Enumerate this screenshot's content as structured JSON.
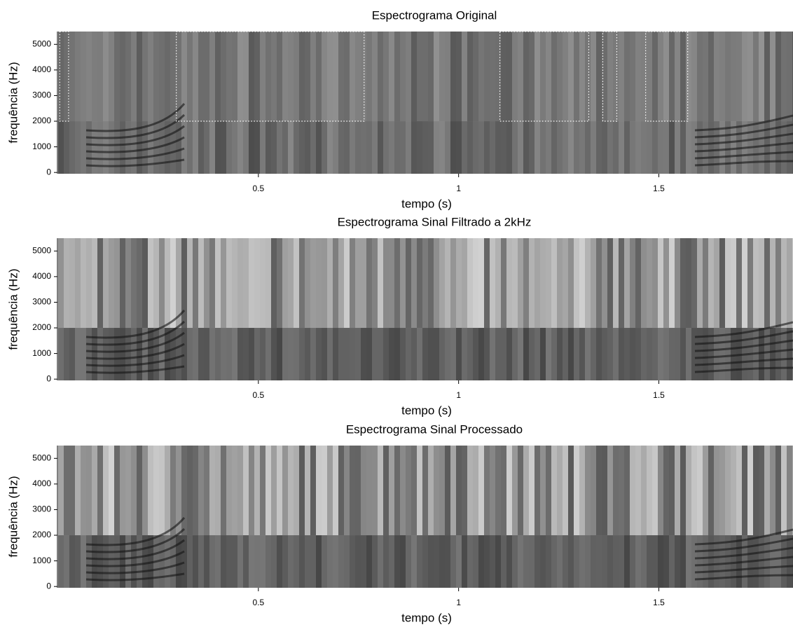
{
  "chart_data": [
    {
      "type": "spectrogram",
      "title": "Espectrograma Original",
      "xlabel": "tempo (s)",
      "ylabel": "frequência (Hz)",
      "xlim": [
        0,
        1.835
      ],
      "ylim": [
        -50,
        5500
      ],
      "xticks": [
        0.5,
        1,
        1.5
      ],
      "yticks": [
        0,
        1000,
        2000,
        3000,
        4000,
        5000
      ],
      "regions": [
        {
          "x": [
            0.004,
            0.026
          ],
          "y": [
            2000,
            5500
          ]
        },
        {
          "x": [
            0.295,
            0.764
          ],
          "y": [
            2000,
            5500
          ]
        },
        {
          "x": [
            1.103,
            1.325
          ],
          "y": [
            2000,
            5500
          ]
        },
        {
          "x": [
            1.36,
            1.395
          ],
          "y": [
            2000,
            5500
          ]
        },
        {
          "x": [
            1.467,
            1.572
          ],
          "y": [
            2000,
            5500
          ]
        }
      ]
    },
    {
      "type": "spectrogram",
      "title": "Espectrograma Sinal Filtrado a 2kHz",
      "xlabel": "tempo (s)",
      "ylabel": "frequência (Hz)",
      "xlim": [
        0,
        1.835
      ],
      "ylim": [
        -50,
        5500
      ],
      "xticks": [
        0.5,
        1,
        1.5
      ],
      "yticks": [
        0,
        1000,
        2000,
        3000,
        4000,
        5000
      ]
    },
    {
      "type": "spectrogram",
      "title": "Espectrograma Sinal Processado",
      "xlabel": "tempo (s)",
      "ylabel": "frequência (Hz)",
      "xlim": [
        0,
        1.835
      ],
      "ylim": [
        -50,
        5500
      ],
      "xticks": [
        0.5,
        1,
        1.5
      ],
      "yticks": [
        0,
        1000,
        2000,
        3000,
        4000,
        5000
      ]
    }
  ]
}
